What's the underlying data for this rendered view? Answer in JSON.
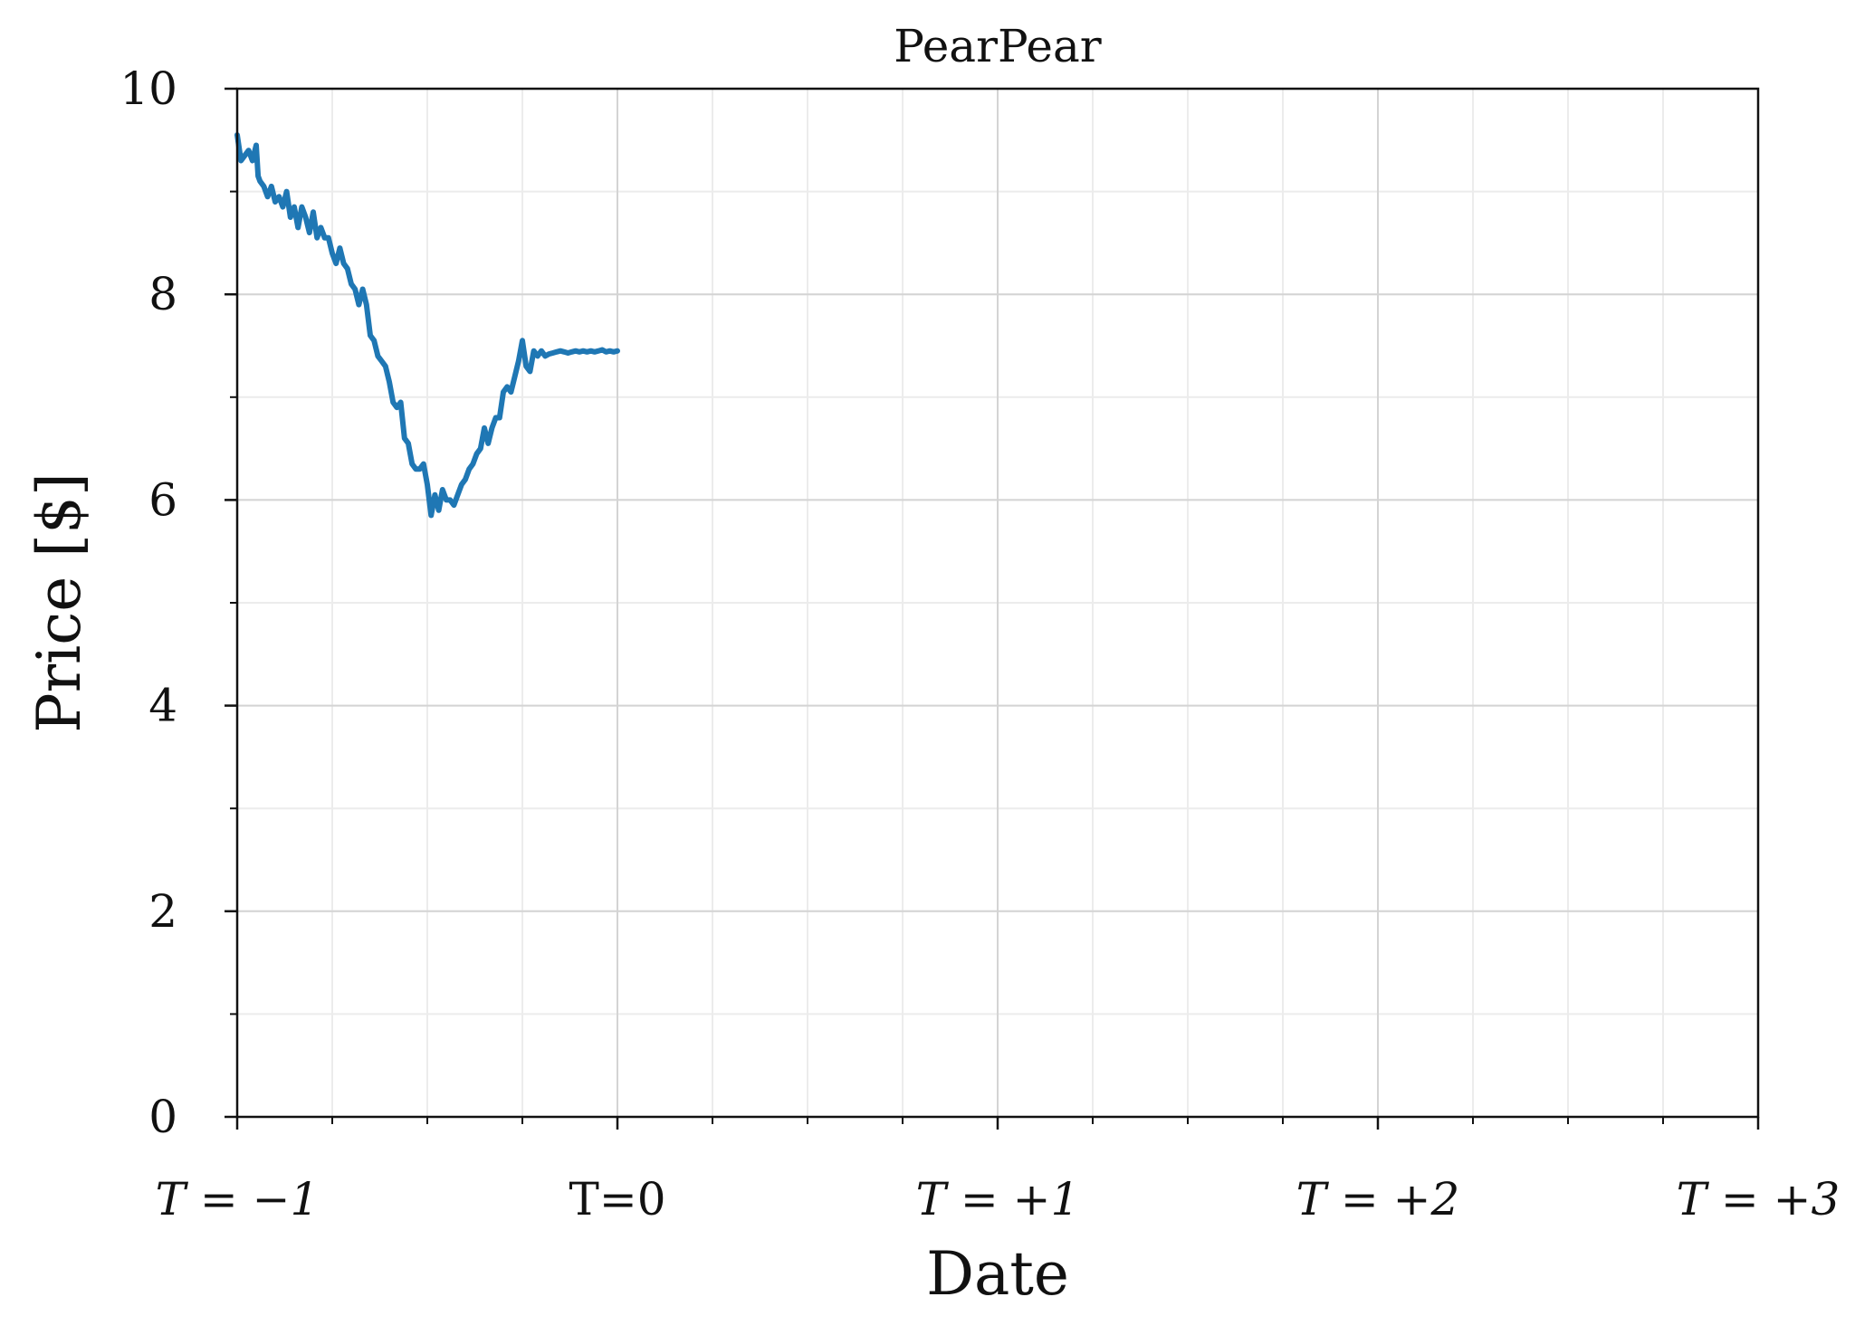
{
  "chart_data": {
    "type": "line",
    "title": "PearPear",
    "xlabel": "Date",
    "ylabel": "Price [$]",
    "xlim": [
      -1,
      3
    ],
    "ylim": [
      0,
      10
    ],
    "x_ticks": [
      {
        "value": -1,
        "label": "T = −1",
        "italic": true
      },
      {
        "value": 0,
        "label": "T=0",
        "italic": false
      },
      {
        "value": 1,
        "label": "T = +1",
        "italic": true
      },
      {
        "value": 2,
        "label": "T = +2",
        "italic": true
      },
      {
        "value": 3,
        "label": "T = +3",
        "italic": true
      }
    ],
    "y_ticks": [
      0,
      2,
      4,
      6,
      8,
      10
    ],
    "grid": true,
    "minor_grid": true,
    "line_color": "#1f77b4",
    "series": [
      {
        "x": [
          -1.0,
          -0.99,
          -0.98,
          -0.97,
          -0.96,
          -0.95,
          -0.945,
          -0.94,
          -0.93,
          -0.92,
          -0.91,
          -0.9,
          -0.89,
          -0.88,
          -0.87,
          -0.86,
          -0.85,
          -0.84,
          -0.83,
          -0.82,
          -0.81,
          -0.8,
          -0.79,
          -0.78,
          -0.77,
          -0.76,
          -0.75,
          -0.74,
          -0.73,
          -0.72,
          -0.71,
          -0.7,
          -0.69,
          -0.68,
          -0.67,
          -0.66,
          -0.65,
          -0.64,
          -0.63,
          -0.62,
          -0.61,
          -0.6,
          -0.59,
          -0.58,
          -0.57,
          -0.56,
          -0.55,
          -0.54,
          -0.53,
          -0.52,
          -0.51,
          -0.5,
          -0.49,
          -0.48,
          -0.47,
          -0.46,
          -0.45,
          -0.44,
          -0.43,
          -0.42,
          -0.41,
          -0.4,
          -0.39,
          -0.38,
          -0.37,
          -0.36,
          -0.35,
          -0.34,
          -0.33,
          -0.32,
          -0.31,
          -0.3,
          -0.29,
          -0.28,
          -0.27,
          -0.26,
          -0.25,
          -0.24,
          -0.23,
          -0.22,
          -0.21,
          -0.2,
          -0.19,
          -0.18,
          -0.17,
          -0.16,
          -0.15,
          -0.14,
          -0.13,
          -0.12,
          -0.11,
          -0.1,
          -0.09,
          -0.08,
          -0.07,
          -0.06,
          -0.05,
          -0.04,
          -0.03,
          -0.02,
          -0.01,
          0.0
        ],
        "y": [
          9.55,
          9.3,
          9.35,
          9.4,
          9.3,
          9.45,
          9.15,
          9.1,
          9.05,
          8.95,
          9.05,
          8.9,
          8.95,
          8.85,
          9.0,
          8.75,
          8.85,
          8.65,
          8.85,
          8.75,
          8.6,
          8.8,
          8.55,
          8.65,
          8.55,
          8.55,
          8.4,
          8.3,
          8.45,
          8.3,
          8.25,
          8.1,
          8.05,
          7.9,
          8.05,
          7.9,
          7.6,
          7.55,
          7.4,
          7.35,
          7.3,
          7.15,
          6.95,
          6.9,
          6.95,
          6.6,
          6.55,
          6.35,
          6.3,
          6.3,
          6.35,
          6.15,
          5.85,
          6.05,
          5.9,
          6.1,
          6.0,
          6.0,
          5.95,
          6.05,
          6.15,
          6.2,
          6.3,
          6.35,
          6.45,
          6.5,
          6.7,
          6.55,
          6.7,
          6.8,
          6.8,
          7.05,
          7.1,
          7.05,
          7.2,
          7.35,
          7.55,
          7.3,
          7.25,
          7.45,
          7.4,
          7.45,
          7.4,
          7.42,
          7.43,
          7.44,
          7.45,
          7.44,
          7.43,
          7.44,
          7.45,
          7.44,
          7.45,
          7.44,
          7.45,
          7.44,
          7.45,
          7.46,
          7.44,
          7.45,
          7.44,
          7.45
        ]
      }
    ]
  }
}
